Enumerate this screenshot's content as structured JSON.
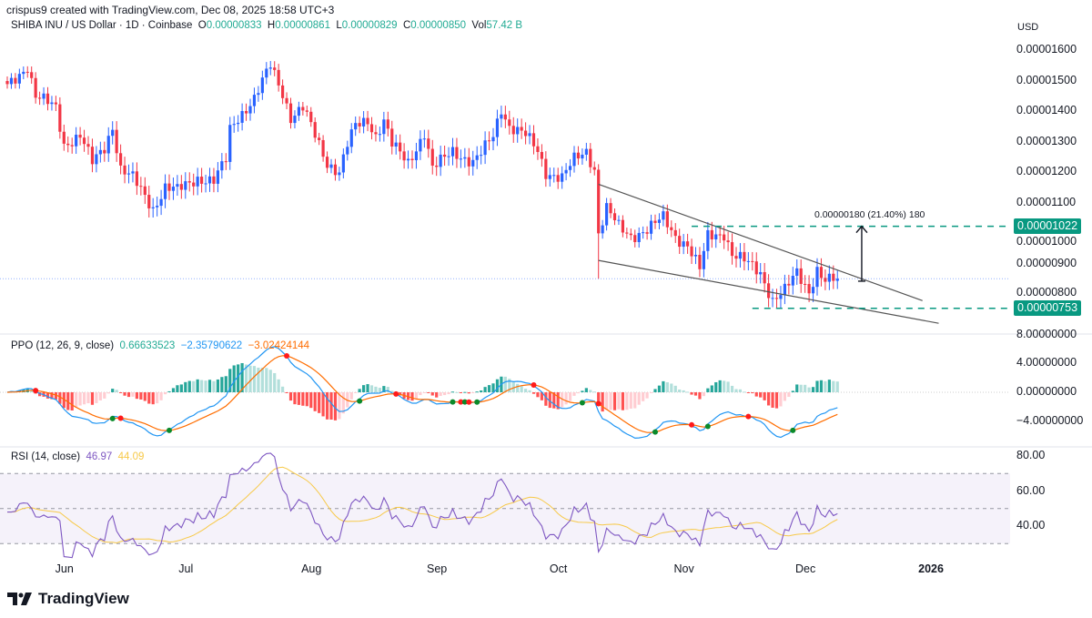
{
  "header": {
    "credit": "crispus9 created with TradingView.com, Dec 08, 2025 18:58 UTC+3",
    "symbol": "SHIBA INU / US Dollar · 1D · Coinbase",
    "o_label": "O",
    "o": "0.00000833",
    "h_label": "H",
    "h": "0.00000861",
    "l_label": "L",
    "l": "0.00000829",
    "c_label": "C",
    "c": "0.00000850",
    "vol_label": "Vol",
    "vol": "57.42 B"
  },
  "currency": "USD",
  "brand": "TradingView",
  "colors": {
    "up": "#2962ff",
    "down": "#f23645",
    "accent": "#089981",
    "ppo": "#2196f3",
    "signal": "#ff6d00",
    "rsi": "#7e57c2",
    "rsi_ma": "#f7c948"
  },
  "chart_data": [
    {
      "type": "candlestick",
      "title": "SHIBA INU / US Dollar · 1D · Coinbase",
      "x_start": "2025-05-17",
      "x_end": "2025-12-08",
      "xlim": [
        "2025-05-17",
        "2026-01-20"
      ],
      "x_ticks": [
        {
          "date": "2025-06-01",
          "label": "Jun"
        },
        {
          "date": "2025-07-01",
          "label": "Jul"
        },
        {
          "date": "2025-08-01",
          "label": "Aug"
        },
        {
          "date": "2025-09-01",
          "label": "Sep"
        },
        {
          "date": "2025-10-01",
          "label": "Oct"
        },
        {
          "date": "2025-11-01",
          "label": "Nov"
        },
        {
          "date": "2025-12-01",
          "label": "Dec"
        },
        {
          "date": "2026-01-01",
          "label": "2026"
        }
      ],
      "y_ticks": [
        "0.00001600",
        "0.00001500",
        "0.00001400",
        "0.00001300",
        "0.00001200",
        "0.00001100",
        "0.00001000",
        "0.00000900",
        "0.00000800"
      ],
      "ylabel": "USD",
      "close_anchors": [
        [
          "2025-05-17",
          1.48e-05
        ],
        [
          "2025-05-20",
          1.52e-05
        ],
        [
          "2025-05-22",
          1.55e-05
        ],
        [
          "2025-05-24",
          1.45e-05
        ],
        [
          "2025-05-29",
          1.41e-05
        ],
        [
          "2025-05-31",
          1.29e-05
        ],
        [
          "2025-06-04",
          1.32e-05
        ],
        [
          "2025-06-07",
          1.23e-05
        ],
        [
          "2025-06-10",
          1.28e-05
        ],
        [
          "2025-06-12",
          1.35e-05
        ],
        [
          "2025-06-14",
          1.21e-05
        ],
        [
          "2025-06-17",
          1.18e-05
        ],
        [
          "2025-06-22",
          1.08e-05
        ],
        [
          "2025-06-25",
          1.15e-05
        ],
        [
          "2025-06-28",
          1.14e-05
        ],
        [
          "2025-07-03",
          1.18e-05
        ],
        [
          "2025-07-07",
          1.17e-05
        ],
        [
          "2025-07-10",
          1.24e-05
        ],
        [
          "2025-07-11",
          1.34e-05
        ],
        [
          "2025-07-13",
          1.38e-05
        ],
        [
          "2025-07-17",
          1.44e-05
        ],
        [
          "2025-07-19",
          1.495e-05
        ],
        [
          "2025-07-21",
          1.55e-05
        ],
        [
          "2025-07-24",
          1.46e-05
        ],
        [
          "2025-07-26",
          1.38e-05
        ],
        [
          "2025-07-29",
          1.41e-05
        ],
        [
          "2025-08-01",
          1.32e-05
        ],
        [
          "2025-08-04",
          1.23e-05
        ],
        [
          "2025-08-07",
          1.2e-05
        ],
        [
          "2025-08-09",
          1.29e-05
        ],
        [
          "2025-08-11",
          1.35e-05
        ],
        [
          "2025-08-14",
          1.37e-05
        ],
        [
          "2025-08-16",
          1.32e-05
        ],
        [
          "2025-08-18",
          1.37e-05
        ],
        [
          "2025-08-20",
          1.29e-05
        ],
        [
          "2025-08-24",
          1.23e-05
        ],
        [
          "2025-08-28",
          1.33e-05
        ],
        [
          "2025-08-30",
          1.21e-05
        ],
        [
          "2025-09-04",
          1.27e-05
        ],
        [
          "2025-09-09",
          1.23e-05
        ],
        [
          "2025-09-11",
          1.26e-05
        ],
        [
          "2025-09-14",
          1.32e-05
        ],
        [
          "2025-09-16",
          1.41e-05
        ],
        [
          "2025-09-18",
          1.35e-05
        ],
        [
          "2025-09-22",
          1.32e-05
        ],
        [
          "2025-09-25",
          1.27e-05
        ],
        [
          "2025-09-27",
          1.2e-05
        ],
        [
          "2025-10-01",
          1.18e-05
        ],
        [
          "2025-10-04",
          1.24e-05
        ],
        [
          "2025-10-07",
          1.27e-05
        ],
        [
          "2025-10-09",
          1.21e-05
        ],
        [
          "2025-10-10",
          1e-05
        ],
        [
          "2025-10-12",
          1.08e-05
        ],
        [
          "2025-10-15",
          1.02e-05
        ],
        [
          "2025-10-18",
          9.9e-06
        ],
        [
          "2025-10-22",
          1.01e-05
        ],
        [
          "2025-10-26",
          1.05e-05
        ],
        [
          "2025-10-29",
          9.9e-06
        ],
        [
          "2025-11-01",
          9.6e-06
        ],
        [
          "2025-11-04",
          8.8e-06
        ],
        [
          "2025-11-06",
          9.9e-06
        ],
        [
          "2025-11-10",
          1e-05
        ],
        [
          "2025-11-12",
          9.3e-06
        ],
        [
          "2025-11-16",
          9e-06
        ],
        [
          "2025-11-19",
          8.7e-06
        ],
        [
          "2025-11-22",
          7.8e-06
        ],
        [
          "2025-11-25",
          8.1e-06
        ],
        [
          "2025-11-28",
          8.7e-06
        ],
        [
          "2025-12-01",
          8.1e-06
        ],
        [
          "2025-12-03",
          8.8e-06
        ],
        [
          "2025-12-05",
          8.4e-06
        ],
        [
          "2025-12-08",
          8.5e-06
        ]
      ],
      "last_price": 8.5e-06,
      "levels": [
        {
          "price": 1.022e-05,
          "label": "0.00001022",
          "from": "2025-11-02"
        },
        {
          "price": 7.53e-06,
          "label": "0.00000753",
          "from": "2025-11-17"
        }
      ],
      "trendlines": [
        {
          "from": [
            "2025-10-10",
            1.16e-05
          ],
          "to": [
            "2025-12-29",
            7.78e-06
          ]
        },
        {
          "from": [
            "2025-10-10",
            9.1e-06
          ],
          "to": [
            "2026-01-02",
            7.04e-06
          ]
        }
      ],
      "measure": {
        "date": "2025-12-14",
        "from": 8.42e-06,
        "to": 1.022e-05,
        "label": "0.00000180 (21.40%) 180"
      }
    },
    {
      "type": "line",
      "title": "PPO (12, 26, 9, close)",
      "legend_values": {
        "histogram": "0.66633523",
        "ppo": "−2.35790622",
        "signal": "−3.02424144"
      },
      "y_ticks": [
        "8.00000000",
        "4.00000000",
        "0.00000000",
        "−4.00000000"
      ],
      "ylim": [
        -7.5,
        8
      ]
    },
    {
      "type": "line",
      "title": "RSI (14, close)",
      "legend_values": {
        "rsi": "46.97",
        "ma": "44.09"
      },
      "y_ticks": [
        "80.00",
        "60.00",
        "40.00"
      ],
      "bands": [
        30,
        50,
        70
      ]
    }
  ]
}
